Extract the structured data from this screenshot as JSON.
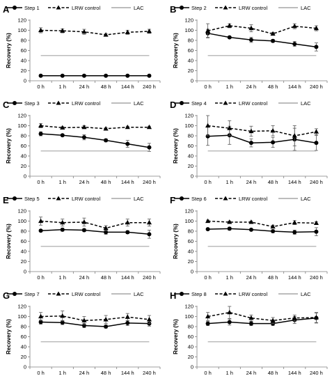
{
  "chart_data": [
    {
      "type": "line",
      "panel_label": "A",
      "ylabel": "Recovery (%)",
      "categories": [
        "0 h",
        "1 h",
        "24 h",
        "48 h",
        "144 h",
        "240 h"
      ],
      "ylim": [
        0,
        120
      ],
      "yticks": [
        0,
        20,
        40,
        60,
        80,
        100,
        120
      ],
      "legend": [
        "Step 1",
        "LRW control",
        "LAC"
      ],
      "legend_position": "top",
      "series": [
        {
          "name": "Step 1",
          "style": "solid-circle",
          "values": [
            10,
            10,
            10,
            10,
            10,
            10
          ],
          "errors": [
            1,
            1,
            1,
            1,
            1,
            1
          ]
        },
        {
          "name": "LRW control",
          "style": "dashed-triangle",
          "values": [
            100,
            99,
            97,
            91,
            96,
            98
          ],
          "errors": [
            5,
            4,
            5,
            2,
            4,
            4
          ]
        },
        {
          "name": "LAC",
          "style": "gray-line",
          "values": [
            50,
            50,
            50,
            50,
            50,
            50
          ]
        }
      ]
    },
    {
      "type": "line",
      "panel_label": "B",
      "ylabel": "Recovery (%)",
      "categories": [
        "0 h",
        "1 h",
        "24 h",
        "48 h",
        "144 h",
        "240 h"
      ],
      "ylim": [
        0,
        120
      ],
      "yticks": [
        0,
        20,
        40,
        60,
        80,
        100,
        120
      ],
      "legend": [
        "Step 2",
        "LRW control",
        "LAC"
      ],
      "legend_position": "top",
      "series": [
        {
          "name": "Step 2",
          "style": "solid-circle",
          "values": [
            94,
            86,
            81,
            79,
            73,
            67
          ],
          "errors": [
            8,
            2,
            5,
            3,
            5,
            8
          ]
        },
        {
          "name": "LRW control",
          "style": "dashed-triangle",
          "values": [
            99,
            109,
            104,
            93,
            108,
            104
          ],
          "errors": [
            14,
            4,
            7,
            3,
            5,
            5
          ]
        },
        {
          "name": "LAC",
          "style": "gray-line",
          "values": [
            50,
            50,
            50,
            50,
            50,
            50
          ]
        }
      ]
    },
    {
      "type": "line",
      "panel_label": "C",
      "ylabel": "Recovery (%)",
      "categories": [
        "0 h",
        "1 h",
        "24 h",
        "48 h",
        "144 h",
        "240 h"
      ],
      "ylim": [
        0,
        120
      ],
      "yticks": [
        0,
        20,
        40,
        60,
        80,
        100,
        120
      ],
      "legend": [
        "Step 3",
        "LRW control",
        "LAC"
      ],
      "legend_position": "top",
      "series": [
        {
          "name": "Step 3",
          "style": "solid-circle",
          "values": [
            84,
            81,
            77,
            71,
            64,
            57
          ],
          "errors": [
            4,
            2,
            5,
            3,
            7,
            8
          ]
        },
        {
          "name": "LRW control",
          "style": "dashed-triangle",
          "values": [
            100,
            96,
            97,
            94,
            97,
            97
          ],
          "errors": [
            4,
            2,
            3,
            2,
            2,
            2
          ]
        },
        {
          "name": "LAC",
          "style": "gray-line",
          "values": [
            50,
            50,
            50,
            50,
            50,
            50
          ]
        }
      ]
    },
    {
      "type": "line",
      "panel_label": "D",
      "ylabel": "Recovery (%)",
      "categories": [
        "0 h",
        "1 h",
        "24 h",
        "48 h",
        "144 h",
        "240 h"
      ],
      "ylim": [
        0,
        120
      ],
      "yticks": [
        0,
        20,
        40,
        60,
        80,
        100,
        120
      ],
      "legend": [
        "Step 4",
        "LRW control",
        "LAC"
      ],
      "legend_position": "top",
      "series": [
        {
          "name": "Step 4",
          "style": "solid-circle",
          "values": [
            79,
            81,
            66,
            67,
            73,
            66
          ],
          "errors": [
            18,
            18,
            8,
            10,
            22,
            15
          ]
        },
        {
          "name": "LRW control",
          "style": "dashed-triangle",
          "values": [
            100,
            95,
            89,
            90,
            80,
            88
          ],
          "errors": [
            20,
            15,
            10,
            10,
            20,
            6
          ]
        },
        {
          "name": "LAC",
          "style": "gray-line",
          "values": [
            50,
            50,
            50,
            50,
            50,
            50
          ]
        }
      ]
    },
    {
      "type": "line",
      "panel_label": "E",
      "ylabel": "Recovery (%)",
      "categories": [
        "0 h",
        "1 h",
        "24 h",
        "48 h",
        "144 h",
        "240 h"
      ],
      "ylim": [
        0,
        120
      ],
      "yticks": [
        0,
        20,
        40,
        60,
        80,
        100,
        120
      ],
      "legend": [
        "Step 5",
        "LRW control",
        "LAC"
      ],
      "legend_position": "top",
      "series": [
        {
          "name": "Step 5",
          "style": "solid-circle",
          "values": [
            81,
            83,
            82,
            78,
            78,
            74
          ],
          "errors": [
            2,
            3,
            3,
            4,
            3,
            8
          ]
        },
        {
          "name": "LRW control",
          "style": "dashed-triangle",
          "values": [
            100,
            97,
            98,
            86,
            97,
            97
          ],
          "errors": [
            8,
            7,
            8,
            5,
            7,
            7
          ]
        },
        {
          "name": "LAC",
          "style": "gray-line",
          "values": [
            50,
            50,
            50,
            50,
            50,
            50
          ]
        }
      ]
    },
    {
      "type": "line",
      "panel_label": "F",
      "ylabel": "Recovery (%)",
      "categories": [
        "0 h",
        "1 h",
        "24 h",
        "48 h",
        "144 h",
        "240 h"
      ],
      "ylim": [
        0,
        120
      ],
      "yticks": [
        0,
        20,
        40,
        60,
        80,
        100,
        120
      ],
      "legend": [
        "Step 6",
        "LRW control",
        "LAC"
      ],
      "legend_position": "top",
      "series": [
        {
          "name": "Step 6",
          "style": "solid-circle",
          "values": [
            84,
            85,
            83,
            80,
            78,
            79
          ],
          "errors": [
            2,
            3,
            2,
            3,
            4,
            8
          ]
        },
        {
          "name": "LRW control",
          "style": "dashed-triangle",
          "values": [
            100,
            98,
            98,
            89,
            97,
            96
          ],
          "errors": [
            2,
            2,
            2,
            3,
            4,
            3
          ]
        },
        {
          "name": "LAC",
          "style": "gray-line",
          "values": [
            50,
            50,
            50,
            50,
            50,
            50
          ]
        }
      ]
    },
    {
      "type": "line",
      "panel_label": "G",
      "ylabel": "Recovery (%)",
      "categories": [
        "0 h",
        "1 h",
        "24 h",
        "48 h",
        "144 h",
        "240 h"
      ],
      "ylim": [
        0,
        120
      ],
      "yticks": [
        0,
        20,
        40,
        60,
        80,
        100,
        120
      ],
      "legend": [
        "Step 7",
        "LRW control",
        "LAC"
      ],
      "legend_position": "top",
      "series": [
        {
          "name": "Step 7",
          "style": "solid-circle",
          "values": [
            89,
            88,
            82,
            80,
            87,
            86
          ],
          "errors": [
            4,
            4,
            4,
            3,
            5,
            5
          ]
        },
        {
          "name": "LRW control",
          "style": "dashed-triangle",
          "values": [
            100,
            101,
            92,
            94,
            99,
            94
          ],
          "errors": [
            8,
            10,
            8,
            8,
            7,
            8
          ]
        },
        {
          "name": "LAC",
          "style": "gray-line",
          "values": [
            50,
            50,
            50,
            50,
            50,
            50
          ]
        }
      ]
    },
    {
      "type": "line",
      "panel_label": "H",
      "ylabel": "Recovery (%)",
      "categories": [
        "0 h",
        "1 h",
        "24 h",
        "48 h",
        "144 h",
        "240 h"
      ],
      "ylim": [
        0,
        120
      ],
      "yticks": [
        0,
        20,
        40,
        60,
        80,
        100,
        120
      ],
      "legend": [
        "Step 8",
        "LRW control",
        "LAC"
      ],
      "legend_position": "top",
      "series": [
        {
          "name": "Step 8",
          "style": "solid-circle",
          "values": [
            86,
            89,
            86,
            86,
            93,
            97
          ],
          "errors": [
            4,
            6,
            4,
            4,
            7,
            10
          ]
        },
        {
          "name": "LRW control",
          "style": "dashed-triangle",
          "values": [
            100,
            108,
            97,
            92,
            97,
            98
          ],
          "errors": [
            8,
            12,
            6,
            6,
            6,
            10
          ]
        },
        {
          "name": "LAC",
          "style": "gray-line",
          "values": [
            50,
            50,
            50,
            50,
            50,
            50
          ]
        }
      ]
    }
  ]
}
